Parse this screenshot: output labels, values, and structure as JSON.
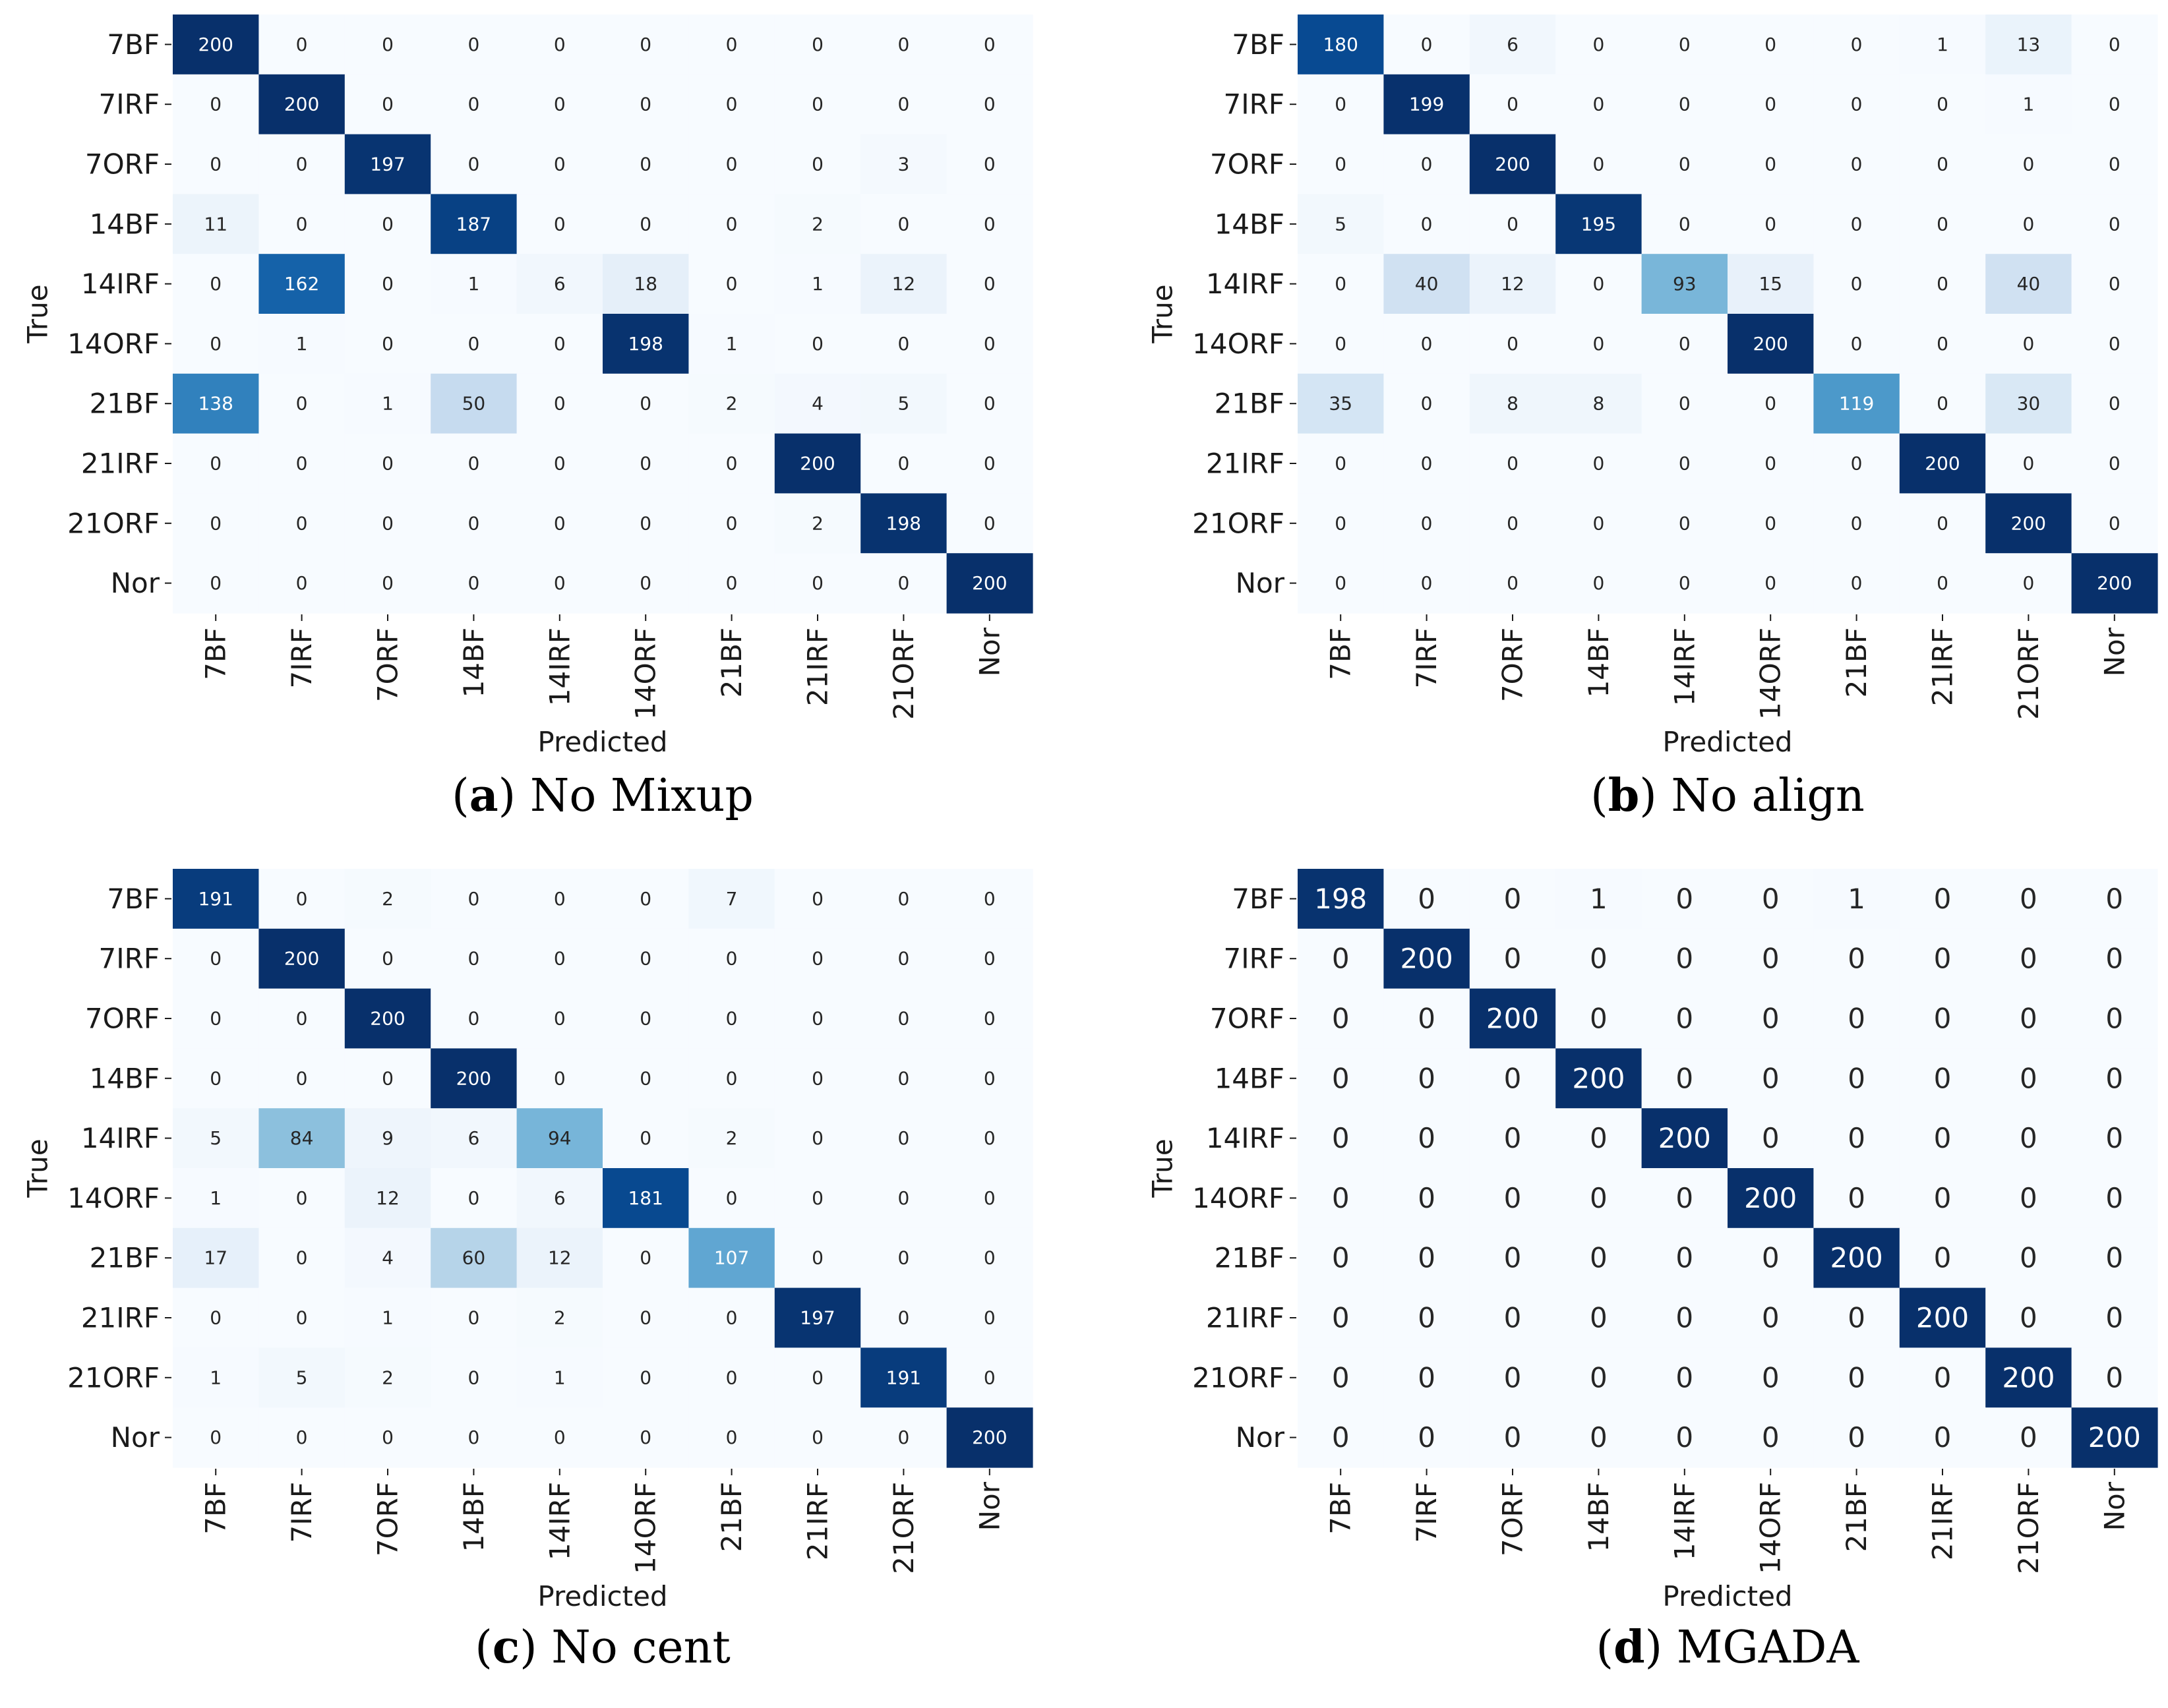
{
  "chart_data": [
    {
      "type": "heatmap",
      "panel_letter": "a",
      "caption": "No Mixup",
      "title": "",
      "xlabel": "Predicted",
      "ylabel": "True",
      "rows": [
        "7BF",
        "7IRF",
        "7ORF",
        "14BF",
        "14IRF",
        "14ORF",
        "21BF",
        "21IRF",
        "21ORF",
        "Nor"
      ],
      "cols": [
        "7BF",
        "7IRF",
        "7ORF",
        "14BF",
        "14IRF",
        "14ORF",
        "21BF",
        "21IRF",
        "21ORF",
        "Nor"
      ],
      "values": [
        [
          200,
          0,
          0,
          0,
          0,
          0,
          0,
          0,
          0,
          0
        ],
        [
          0,
          200,
          0,
          0,
          0,
          0,
          0,
          0,
          0,
          0
        ],
        [
          0,
          0,
          197,
          0,
          0,
          0,
          0,
          0,
          3,
          0
        ],
        [
          11,
          0,
          0,
          187,
          0,
          0,
          0,
          2,
          0,
          0
        ],
        [
          0,
          162,
          0,
          1,
          6,
          18,
          0,
          1,
          12,
          0
        ],
        [
          0,
          1,
          0,
          0,
          0,
          198,
          1,
          0,
          0,
          0
        ],
        [
          138,
          0,
          1,
          50,
          0,
          0,
          2,
          4,
          5,
          0
        ],
        [
          0,
          0,
          0,
          0,
          0,
          0,
          0,
          200,
          0,
          0
        ],
        [
          0,
          0,
          0,
          0,
          0,
          0,
          0,
          2,
          198,
          0
        ],
        [
          0,
          0,
          0,
          0,
          0,
          0,
          0,
          0,
          0,
          200
        ]
      ],
      "vmin": 0,
      "vmax": 200
    },
    {
      "type": "heatmap",
      "panel_letter": "b",
      "caption": "No align",
      "title": "",
      "xlabel": "Predicted",
      "ylabel": "True",
      "rows": [
        "7BF",
        "7IRF",
        "7ORF",
        "14BF",
        "14IRF",
        "14ORF",
        "21BF",
        "21IRF",
        "21ORF",
        "Nor"
      ],
      "cols": [
        "7BF",
        "7IRF",
        "7ORF",
        "14BF",
        "14IRF",
        "14ORF",
        "21BF",
        "21IRF",
        "21ORF",
        "Nor"
      ],
      "values": [
        [
          180,
          0,
          6,
          0,
          0,
          0,
          0,
          1,
          13,
          0
        ],
        [
          0,
          199,
          0,
          0,
          0,
          0,
          0,
          0,
          1,
          0
        ],
        [
          0,
          0,
          200,
          0,
          0,
          0,
          0,
          0,
          0,
          0
        ],
        [
          5,
          0,
          0,
          195,
          0,
          0,
          0,
          0,
          0,
          0
        ],
        [
          0,
          40,
          12,
          0,
          93,
          15,
          0,
          0,
          40,
          0
        ],
        [
          0,
          0,
          0,
          0,
          0,
          200,
          0,
          0,
          0,
          0
        ],
        [
          35,
          0,
          8,
          8,
          0,
          0,
          119,
          0,
          30,
          0
        ],
        [
          0,
          0,
          0,
          0,
          0,
          0,
          0,
          200,
          0,
          0
        ],
        [
          0,
          0,
          0,
          0,
          0,
          0,
          0,
          0,
          200,
          0
        ],
        [
          0,
          0,
          0,
          0,
          0,
          0,
          0,
          0,
          0,
          200
        ]
      ],
      "vmin": 0,
      "vmax": 200
    },
    {
      "type": "heatmap",
      "panel_letter": "c",
      "caption": "No cent",
      "title": "",
      "xlabel": "Predicted",
      "ylabel": "True",
      "rows": [
        "7BF",
        "7IRF",
        "7ORF",
        "14BF",
        "14IRF",
        "14ORF",
        "21BF",
        "21IRF",
        "21ORF",
        "Nor"
      ],
      "cols": [
        "7BF",
        "7IRF",
        "7ORF",
        "14BF",
        "14IRF",
        "14ORF",
        "21BF",
        "21IRF",
        "21ORF",
        "Nor"
      ],
      "values": [
        [
          191,
          0,
          2,
          0,
          0,
          0,
          7,
          0,
          0,
          0
        ],
        [
          0,
          200,
          0,
          0,
          0,
          0,
          0,
          0,
          0,
          0
        ],
        [
          0,
          0,
          200,
          0,
          0,
          0,
          0,
          0,
          0,
          0
        ],
        [
          0,
          0,
          0,
          200,
          0,
          0,
          0,
          0,
          0,
          0
        ],
        [
          5,
          84,
          9,
          6,
          94,
          0,
          2,
          0,
          0,
          0
        ],
        [
          1,
          0,
          12,
          0,
          6,
          181,
          0,
          0,
          0,
          0
        ],
        [
          17,
          0,
          4,
          60,
          12,
          0,
          107,
          0,
          0,
          0
        ],
        [
          0,
          0,
          1,
          0,
          2,
          0,
          0,
          197,
          0,
          0
        ],
        [
          1,
          5,
          2,
          0,
          1,
          0,
          0,
          0,
          191,
          0
        ],
        [
          0,
          0,
          0,
          0,
          0,
          0,
          0,
          0,
          0,
          200
        ]
      ],
      "vmin": 0,
      "vmax": 200
    },
    {
      "type": "heatmap",
      "panel_letter": "d",
      "caption": "MGADA",
      "title": "",
      "xlabel": "Predicted",
      "ylabel": "True",
      "rows": [
        "7BF",
        "7IRF",
        "7ORF",
        "14BF",
        "14IRF",
        "14ORF",
        "21BF",
        "21IRF",
        "21ORF",
        "Nor"
      ],
      "cols": [
        "7BF",
        "7IRF",
        "7ORF",
        "14BF",
        "14IRF",
        "14ORF",
        "21BF",
        "21IRF",
        "21ORF",
        "Nor"
      ],
      "values": [
        [
          198,
          0,
          0,
          1,
          0,
          0,
          1,
          0,
          0,
          0
        ],
        [
          0,
          200,
          0,
          0,
          0,
          0,
          0,
          0,
          0,
          0
        ],
        [
          0,
          0,
          200,
          0,
          0,
          0,
          0,
          0,
          0,
          0
        ],
        [
          0,
          0,
          0,
          200,
          0,
          0,
          0,
          0,
          0,
          0
        ],
        [
          0,
          0,
          0,
          0,
          200,
          0,
          0,
          0,
          0,
          0
        ],
        [
          0,
          0,
          0,
          0,
          0,
          200,
          0,
          0,
          0,
          0
        ],
        [
          0,
          0,
          0,
          0,
          0,
          0,
          200,
          0,
          0,
          0
        ],
        [
          0,
          0,
          0,
          0,
          0,
          0,
          0,
          200,
          0,
          0
        ],
        [
          0,
          0,
          0,
          0,
          0,
          0,
          0,
          0,
          200,
          0
        ],
        [
          0,
          0,
          0,
          0,
          0,
          0,
          0,
          0,
          0,
          200
        ]
      ],
      "vmin": 0,
      "vmax": 200
    }
  ],
  "colors": {
    "low": "#f7fbff",
    "mid_1": "#deebf7",
    "mid_2": "#c6dbef",
    "mid_3": "#9ecae1",
    "mid_4": "#6baed6",
    "mid_5": "#4292c6",
    "mid_6": "#2171b5",
    "mid_7": "#08519c",
    "high": "#08306b",
    "axis_text": "#1a1a1a",
    "cell_text_dark": "#262626",
    "cell_text_light": "#ffffff"
  }
}
